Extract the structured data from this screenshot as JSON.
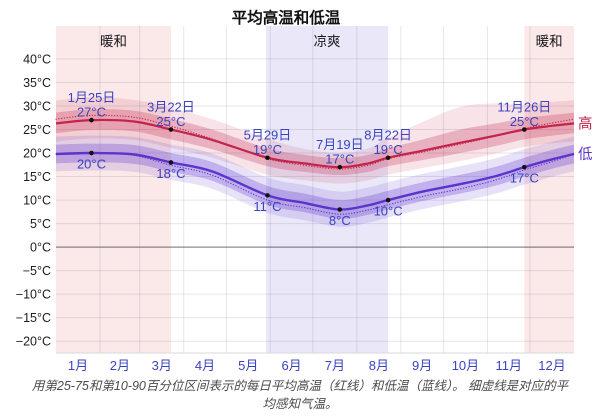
{
  "caption": "用第25-75和第10-90百分位区间表示的每日平均高温（红线）和低温（蓝线）。 细虚线是对应的平均感知气温。",
  "colors": {
    "high_line": "#c2244c",
    "low_line": "#5c33cb",
    "link_blue": "#3b43c0",
    "warm_band_bg": "#fbe8e8",
    "cool_band_bg": "#eae8f8",
    "gridline": "rgba(60,60,90,0.13)",
    "zero_line": "rgba(40,45,60,0.55)",
    "axis_line": "#d9d9df",
    "point": "#111111"
  },
  "chart_data": {
    "type": "line",
    "title": "平均高温和低温",
    "ylabel": "°C",
    "ylim": [
      -22.5,
      47
    ],
    "xlim_days": [
      0,
      365
    ],
    "grid": true,
    "y_ticks": [
      {
        "v": 40,
        "label": "40°C"
      },
      {
        "v": 35,
        "label": "35°C"
      },
      {
        "v": 30,
        "label": "30°C"
      },
      {
        "v": 25,
        "label": "25°C"
      },
      {
        "v": 20,
        "label": "20°C"
      },
      {
        "v": 15,
        "label": "15°C"
      },
      {
        "v": 10,
        "label": "10°C"
      },
      {
        "v": 5,
        "label": "5°C"
      },
      {
        "v": 0,
        "label": "0°C"
      },
      {
        "v": -5,
        "label": "−5°C"
      },
      {
        "v": -10,
        "label": "−10°C"
      },
      {
        "v": -15,
        "label": "−15°C"
      },
      {
        "v": -20,
        "label": "−20°C"
      }
    ],
    "month_boundaries": [
      0,
      31,
      59,
      90,
      120,
      151,
      181,
      212,
      243,
      273,
      304,
      334,
      365
    ],
    "month_labels": [
      "1月",
      "2月",
      "3月",
      "4月",
      "5月",
      "6月",
      "7月",
      "8月",
      "9月",
      "10月",
      "11月",
      "12月"
    ],
    "season_bands": [
      {
        "label": "暖和",
        "start_day": 0,
        "end_day": 81,
        "kind": "warm"
      },
      {
        "label": "凉爽",
        "start_day": 148,
        "end_day": 234,
        "kind": "cool"
      },
      {
        "label": "暖和",
        "start_day": 330,
        "end_day": 365,
        "kind": "warm"
      }
    ],
    "days": [
      0,
      25,
      55,
      81,
      110,
      149,
      175,
      200,
      220,
      234,
      260,
      285,
      310,
      330,
      350,
      365
    ],
    "series": {
      "high": {
        "name": "高",
        "values": [
          26.3,
          27,
          26.7,
          25,
          22.8,
          19,
          17.8,
          17,
          17.8,
          19,
          20.6,
          22.2,
          23.7,
          25,
          25.8,
          26.3
        ],
        "perceived": [
          27.2,
          28,
          27.6,
          25.7,
          23,
          18.8,
          17.4,
          16.6,
          17.4,
          18.8,
          20.3,
          21.9,
          23.6,
          25.2,
          26.4,
          27.2
        ],
        "inner_upper": [
          28.6,
          29.3,
          29,
          27.3,
          25,
          21,
          19.6,
          18.9,
          19.6,
          21,
          23,
          25,
          26.3,
          27.4,
          28.1,
          28.6
        ],
        "inner_lower": [
          24.2,
          24.9,
          24.6,
          22.9,
          20.8,
          17.2,
          16,
          15.3,
          16,
          17.2,
          18.6,
          20,
          21.5,
          22.9,
          23.7,
          24.2
        ],
        "outer_upper": [
          31.2,
          31.8,
          31.3,
          29.6,
          27.2,
          23,
          20.9,
          20,
          21,
          23.3,
          26.8,
          29.8,
          30.6,
          30.3,
          30.9,
          31.2
        ],
        "outer_lower": [
          22.4,
          23.1,
          22.8,
          21.1,
          19,
          15.4,
          14.2,
          13.5,
          14.2,
          15.4,
          16.9,
          18.3,
          19.9,
          21.3,
          22.1,
          22.4
        ]
      },
      "low": {
        "name": "低",
        "values": [
          19.8,
          20,
          19.7,
          18,
          16.1,
          11,
          9.4,
          8,
          8.9,
          10,
          11.9,
          13.4,
          15.1,
          17,
          18.7,
          19.8
        ],
        "perceived": [
          19.8,
          20,
          19.5,
          17.4,
          15.3,
          10,
          8.4,
          7,
          7.9,
          9,
          10.9,
          12.4,
          14.3,
          16.4,
          18.2,
          19.8
        ],
        "inner_upper": [
          21.8,
          22,
          21.7,
          20,
          18.1,
          13,
          11.4,
          10,
          10.9,
          12,
          13.9,
          15.4,
          17.1,
          19,
          20.7,
          21.8
        ],
        "inner_lower": [
          17.8,
          18,
          17.7,
          16,
          14.1,
          9,
          7.4,
          6,
          6.9,
          8,
          9.9,
          11.4,
          13.1,
          15,
          16.7,
          17.8
        ],
        "outer_upper": [
          23.5,
          23.7,
          23.4,
          21.8,
          19.9,
          14.8,
          13.2,
          11.8,
          12.7,
          13.8,
          15.7,
          17.2,
          18.9,
          20.8,
          22.4,
          23.5
        ],
        "outer_lower": [
          16.1,
          16.3,
          16,
          14.3,
          12.4,
          7.3,
          5.7,
          4.3,
          5.2,
          6.3,
          8.2,
          9.7,
          11.4,
          13.3,
          15,
          16.1
        ]
      }
    },
    "annotations": {
      "high": [
        {
          "day": 25,
          "date": "1月25日",
          "temp": 27,
          "temp_label": "27°C"
        },
        {
          "day": 81,
          "date": "3月22日",
          "temp": 25,
          "temp_label": "25°C"
        },
        {
          "day": 149,
          "date": "5月29日",
          "temp": 19,
          "temp_label": "19°C"
        },
        {
          "day": 200,
          "date": "7月19日",
          "temp": 17,
          "temp_label": "17°C"
        },
        {
          "day": 234,
          "date": "8月22日",
          "temp": 19,
          "temp_label": "19°C"
        },
        {
          "day": 330,
          "date": "11月26日",
          "temp": 25,
          "temp_label": "25°C"
        }
      ],
      "low": [
        {
          "day": 25,
          "temp": 20,
          "temp_label": "20°C"
        },
        {
          "day": 81,
          "temp": 18,
          "temp_label": "18°C"
        },
        {
          "day": 149,
          "temp": 11,
          "temp_label": "11°C"
        },
        {
          "day": 200,
          "temp": 8,
          "temp_label": "8°C"
        },
        {
          "day": 234,
          "temp": 10,
          "temp_label": "10°C"
        },
        {
          "day": 330,
          "temp": 17,
          "temp_label": "17°C"
        }
      ]
    },
    "legend": {
      "high": "高",
      "low": "低"
    },
    "legend_position": "right-of-line-ends"
  }
}
